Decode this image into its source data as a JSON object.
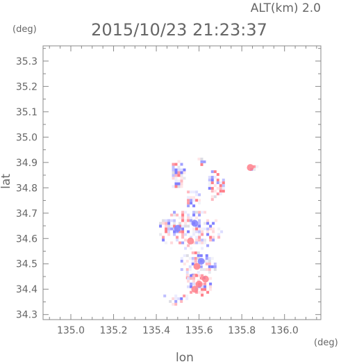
{
  "chart_data": {
    "type": "heatmap",
    "title": "2015/10/23 21:23:37",
    "subtitle": "ALT(km)  2.0",
    "xlabel": "lon",
    "ylabel": "lat",
    "xunit": "(deg)",
    "yunit": "(deg)",
    "xlim": [
      134.87,
      136.17
    ],
    "ylim": [
      34.28,
      35.36
    ],
    "xticks": [
      135.0,
      135.2,
      135.4,
      135.6,
      135.8,
      136.0
    ],
    "xtick_labels": [
      "135.0",
      "135.2",
      "135.4",
      "135.6",
      "135.8",
      "136.0"
    ],
    "yticks": [
      34.3,
      34.4,
      34.5,
      34.6,
      34.7,
      34.8,
      34.9,
      35.0,
      35.1,
      35.2,
      35.3
    ],
    "ytick_labels": [
      "34.3",
      "34.4",
      "34.5",
      "34.6",
      "34.7",
      "34.8",
      "34.9",
      "35.0",
      "35.1",
      "35.2",
      "35.3"
    ],
    "grid": false,
    "colors": {
      "positive": "#ff7f8a",
      "negative": "#7f7fff",
      "axis": "#888888",
      "text": "#666666"
    },
    "regions": [
      {
        "lon_min": 135.4,
        "lon_max": 135.7,
        "lat_min": 34.56,
        "lat_max": 34.72,
        "pattern": "mixed"
      },
      {
        "lon_min": 135.5,
        "lon_max": 135.68,
        "lat_min": 34.43,
        "lat_max": 34.56,
        "pattern": "mixed"
      },
      {
        "lon_min": 135.53,
        "lon_max": 135.67,
        "lat_min": 34.38,
        "lat_max": 34.47,
        "pattern": "positive"
      },
      {
        "lon_min": 135.42,
        "lon_max": 135.55,
        "lat_min": 34.34,
        "lat_max": 34.39,
        "pattern": "mixed"
      },
      {
        "lon_min": 135.46,
        "lon_max": 135.53,
        "lat_min": 34.78,
        "lat_max": 34.92,
        "pattern": "mixed"
      },
      {
        "lon_min": 135.63,
        "lon_max": 135.72,
        "lat_min": 34.75,
        "lat_max": 34.88,
        "pattern": "mixed"
      },
      {
        "lon_min": 135.53,
        "lon_max": 135.6,
        "lat_min": 34.72,
        "lat_max": 34.8,
        "pattern": "mixed"
      },
      {
        "lon_min": 135.8,
        "lon_max": 135.87,
        "lat_min": 34.87,
        "lat_max": 34.9,
        "pattern": "mixed"
      },
      {
        "lon_min": 135.58,
        "lon_max": 135.62,
        "lat_min": 34.88,
        "lat_max": 34.93,
        "pattern": "mixed"
      }
    ],
    "blobs": [
      {
        "lon": 135.59,
        "lat": 34.49,
        "sign": "positive"
      },
      {
        "lon": 135.6,
        "lat": 34.42,
        "sign": "positive"
      },
      {
        "lon": 135.63,
        "lat": 34.44,
        "sign": "positive"
      },
      {
        "lon": 135.58,
        "lat": 34.4,
        "sign": "positive"
      },
      {
        "lon": 135.56,
        "lat": 34.59,
        "sign": "positive"
      },
      {
        "lon": 135.84,
        "lat": 34.88,
        "sign": "positive"
      },
      {
        "lon": 135.61,
        "lat": 34.51,
        "sign": "negative"
      },
      {
        "lon": 135.5,
        "lat": 34.64,
        "sign": "negative"
      },
      {
        "lon": 135.58,
        "lat": 34.66,
        "sign": "negative"
      }
    ]
  }
}
